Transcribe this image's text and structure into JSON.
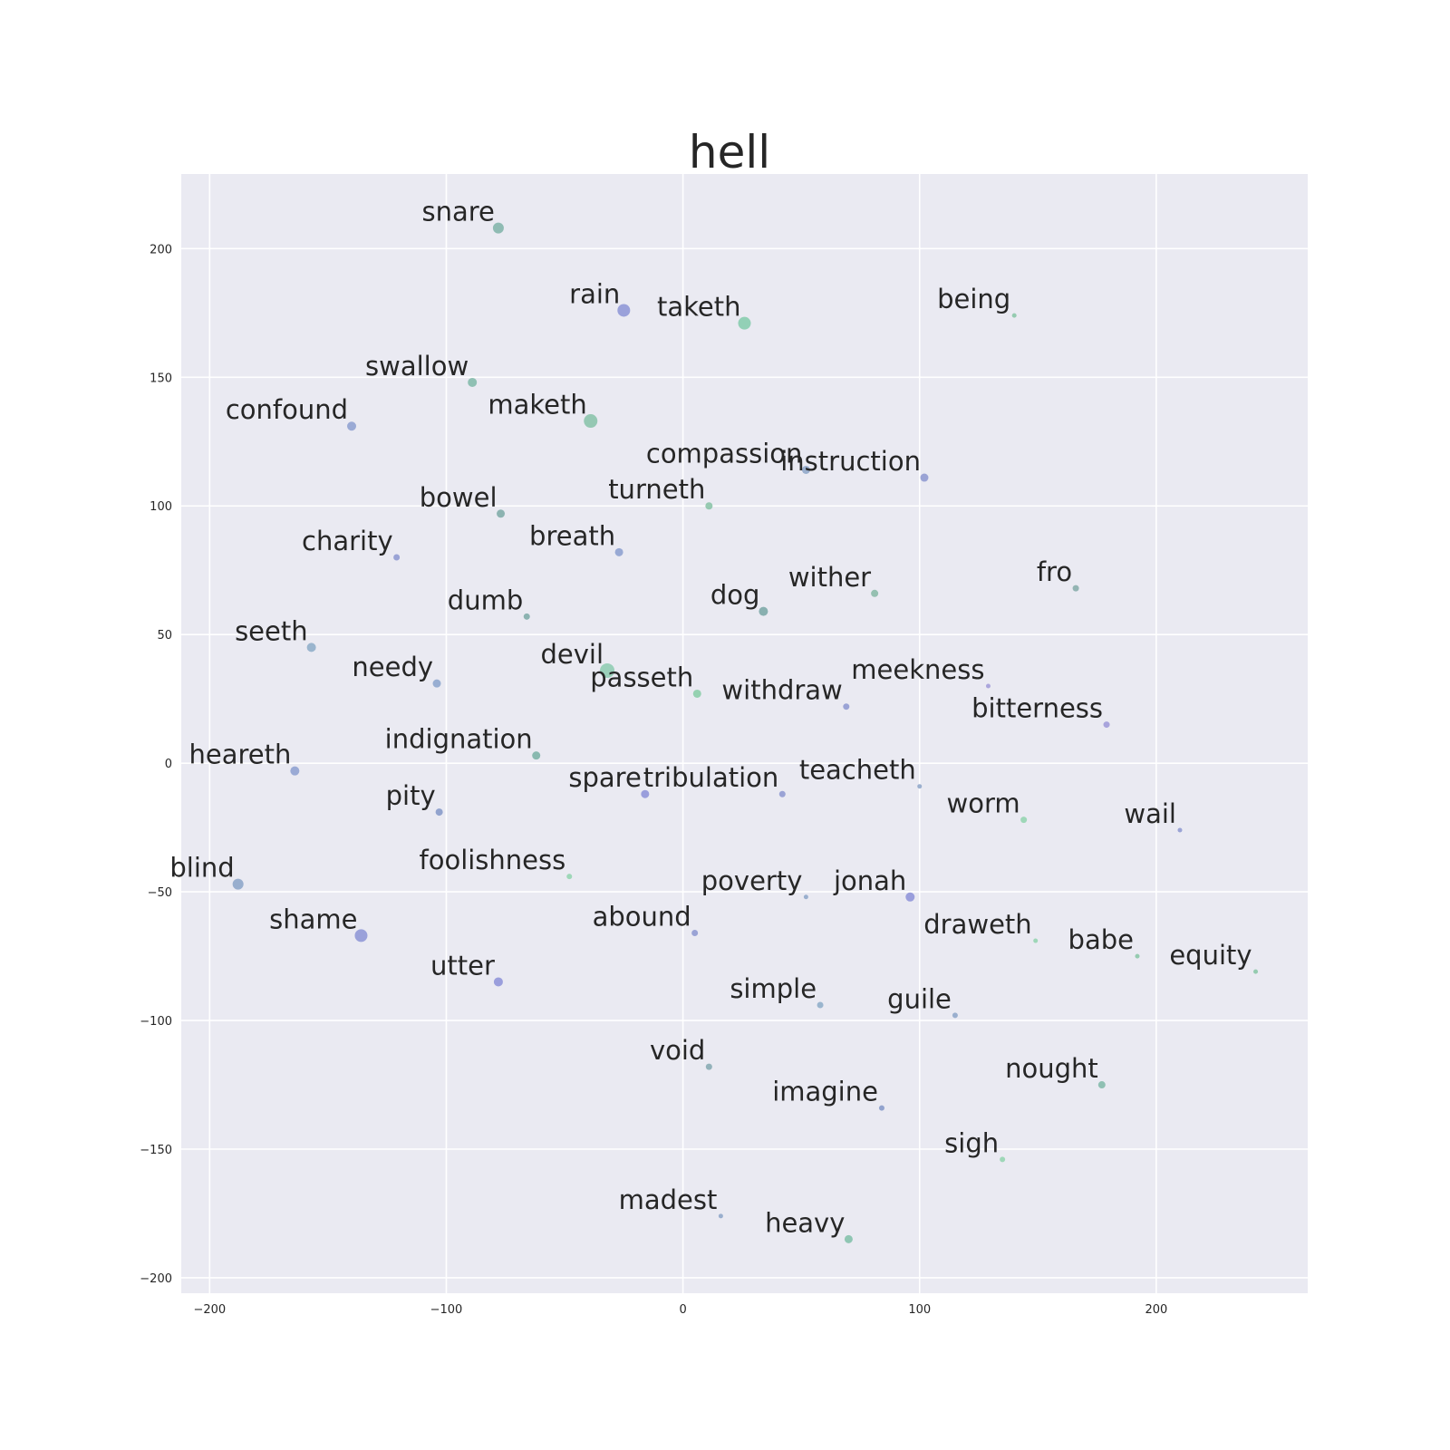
{
  "chart_data": {
    "type": "scatter",
    "title": "hell",
    "xlabel": "",
    "ylabel": "",
    "xlim": [
      -212,
      264
    ],
    "ylim": [
      -206,
      229
    ],
    "xticks": [
      -200,
      -100,
      0,
      100,
      200
    ],
    "yticks": [
      200,
      150,
      100,
      50,
      0,
      -50,
      -100,
      -150,
      -200
    ],
    "grid": true,
    "background_color": "#eaeaf2",
    "point_colors": [
      "#7f8fd6",
      "#8aa3c8",
      "#7fb8a8",
      "#6ec4a0"
    ],
    "points": [
      {
        "label": "snare",
        "x": -78,
        "y": 208,
        "size": 6,
        "color": "#7fb3a8"
      },
      {
        "label": "rain",
        "x": -25,
        "y": 176,
        "size": 7,
        "color": "#8c94d6"
      },
      {
        "label": "taketh",
        "x": 26,
        "y": 171,
        "size": 7,
        "color": "#82cbab"
      },
      {
        "label": "being",
        "x": 140,
        "y": 174,
        "size": 2.5,
        "color": "#86c6a4"
      },
      {
        "label": "swallow",
        "x": -89,
        "y": 148,
        "size": 5,
        "color": "#7fb8a8"
      },
      {
        "label": "confound",
        "x": -140,
        "y": 131,
        "size": 5,
        "color": "#8c9fd0"
      },
      {
        "label": "maketh",
        "x": -39,
        "y": 133,
        "size": 7.5,
        "color": "#86c2a8"
      },
      {
        "label": "compassion",
        "x": 52,
        "y": 114,
        "size": 4.5,
        "color": "#8ca4c8"
      },
      {
        "label": "instruction",
        "x": 102,
        "y": 111,
        "size": 4.5,
        "color": "#8c96d0"
      },
      {
        "label": "turneth",
        "x": 11,
        "y": 100,
        "size": 4,
        "color": "#86c2a4"
      },
      {
        "label": "bowel",
        "x": -77,
        "y": 97,
        "size": 4.5,
        "color": "#7ba9a6"
      },
      {
        "label": "breath",
        "x": -27,
        "y": 82,
        "size": 4.5,
        "color": "#8a9ecf"
      },
      {
        "label": "charity",
        "x": -121,
        "y": 80,
        "size": 3.5,
        "color": "#8c96d0"
      },
      {
        "label": "wither",
        "x": 81,
        "y": 66,
        "size": 4,
        "color": "#86b8a6"
      },
      {
        "label": "dog",
        "x": 34,
        "y": 59,
        "size": 5,
        "color": "#78a6a4"
      },
      {
        "label": "fro",
        "x": 166,
        "y": 68,
        "size": 3.5,
        "color": "#84aaa8"
      },
      {
        "label": "dumb",
        "x": -66,
        "y": 57,
        "size": 3.5,
        "color": "#7ba9a6"
      },
      {
        "label": "seeth",
        "x": -157,
        "y": 45,
        "size": 5,
        "color": "#8cabc8"
      },
      {
        "label": "needy",
        "x": -104,
        "y": 31,
        "size": 4.5,
        "color": "#8aa3cc"
      },
      {
        "label": "devil",
        "x": -32,
        "y": 36,
        "size": 8,
        "color": "#8ccbb0"
      },
      {
        "label": "passeth",
        "x": 6,
        "y": 27,
        "size": 4.5,
        "color": "#86cca6"
      },
      {
        "label": "withdraw",
        "x": 69,
        "y": 22,
        "size": 3.5,
        "color": "#8c96d0"
      },
      {
        "label": "meekness",
        "x": 129,
        "y": 30,
        "size": 2.5,
        "color": "#a09ad8"
      },
      {
        "label": "bitterness",
        "x": 179,
        "y": 15,
        "size": 3.5,
        "color": "#9c98d8"
      },
      {
        "label": "indignation",
        "x": -62,
        "y": 3,
        "size": 4.5,
        "color": "#78b0a4"
      },
      {
        "label": "heareth",
        "x": -164,
        "y": -3,
        "size": 5,
        "color": "#8c9fd0"
      },
      {
        "label": "spare",
        "x": -16,
        "y": -12,
        "size": 4.5,
        "color": "#8c90d8"
      },
      {
        "label": "tribulation",
        "x": 42,
        "y": -12,
        "size": 3.5,
        "color": "#8c96d0"
      },
      {
        "label": "teacheth",
        "x": 100,
        "y": -9,
        "size": 2.5,
        "color": "#8ca4c8"
      },
      {
        "label": "pity",
        "x": -103,
        "y": -19,
        "size": 4,
        "color": "#8296c8"
      },
      {
        "label": "worm",
        "x": 144,
        "y": -22,
        "size": 3.5,
        "color": "#90d4ae"
      },
      {
        "label": "wail",
        "x": 210,
        "y": -26,
        "size": 2.5,
        "color": "#8c96d0"
      },
      {
        "label": "blind",
        "x": -188,
        "y": -47,
        "size": 6,
        "color": "#8aa3c8"
      },
      {
        "label": "foolishness",
        "x": -48,
        "y": -44,
        "size": 3,
        "color": "#90d4ae"
      },
      {
        "label": "poverty",
        "x": 52,
        "y": -52,
        "size": 2.5,
        "color": "#8ca4c8"
      },
      {
        "label": "jonah",
        "x": 96,
        "y": -52,
        "size": 5,
        "color": "#8c90d8"
      },
      {
        "label": "shame",
        "x": -136,
        "y": -67,
        "size": 7,
        "color": "#8c94d6"
      },
      {
        "label": "abound",
        "x": 5,
        "y": -66,
        "size": 3.5,
        "color": "#8c96d0"
      },
      {
        "label": "draweth",
        "x": 149,
        "y": -69,
        "size": 2.5,
        "color": "#90d4ae"
      },
      {
        "label": "babe",
        "x": 192,
        "y": -75,
        "size": 2.5,
        "color": "#86c6a4"
      },
      {
        "label": "equity",
        "x": 242,
        "y": -81,
        "size": 2.5,
        "color": "#86c6a4"
      },
      {
        "label": "utter",
        "x": -78,
        "y": -85,
        "size": 5,
        "color": "#8c90d8"
      },
      {
        "label": "simple",
        "x": 58,
        "y": -94,
        "size": 3.5,
        "color": "#8cabc8"
      },
      {
        "label": "guile",
        "x": 115,
        "y": -98,
        "size": 3,
        "color": "#8ca4c8"
      },
      {
        "label": "void",
        "x": 11,
        "y": -118,
        "size": 3.5,
        "color": "#84a8b0"
      },
      {
        "label": "nought",
        "x": 177,
        "y": -125,
        "size": 4,
        "color": "#7fb8a8"
      },
      {
        "label": "imagine",
        "x": 84,
        "y": -134,
        "size": 3,
        "color": "#8296c8"
      },
      {
        "label": "sigh",
        "x": 135,
        "y": -154,
        "size": 3,
        "color": "#90d4ae"
      },
      {
        "label": "madest",
        "x": 16,
        "y": -176,
        "size": 2.5,
        "color": "#8ca4c8"
      },
      {
        "label": "heavy",
        "x": 70,
        "y": -185,
        "size": 4.5,
        "color": "#7fbfa8"
      }
    ]
  }
}
